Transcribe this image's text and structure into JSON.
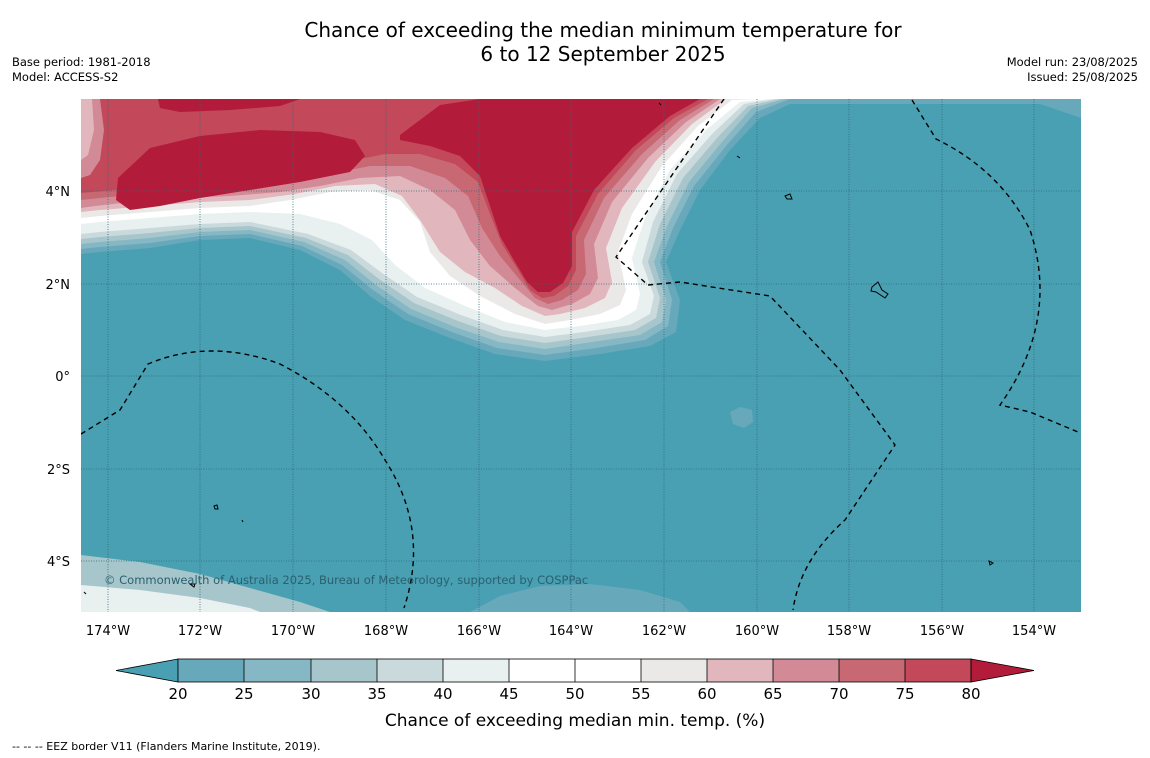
{
  "header": {
    "title_line1": "Chance of exceeding the median minimum temperature for",
    "title_line2": "6 to 12 September 2025",
    "base_period": "Base period: 1981-2018",
    "model": "Model: ACCESS-S2",
    "model_run": "Model run: 23/08/2025",
    "issued": "Issued: 25/08/2025"
  },
  "map": {
    "lat_range": [
      -5.2,
      5.8
    ],
    "lon_range": [
      -174.6,
      -153.0
    ],
    "lat_labels": [
      "4°N",
      "2°N",
      "0°",
      "2°S",
      "4°S"
    ],
    "lon_labels": [
      "174°W",
      "172°W",
      "170°W",
      "168°W",
      "166°W",
      "164°W",
      "162°W",
      "160°W",
      "158°W",
      "156°W",
      "154°W"
    ],
    "copyright": "© Commonwealth of Australia 2025, Bureau of Meteorology, supported by COSPPac",
    "colors": {
      "below_20": "#48a0b2",
      "c20_25": "#67a9bb",
      "c25_30": "#86b7c4",
      "c30_35": "#a7c6cb",
      "c35_40": "#cad9dc",
      "c40_45": "#e8f0f0",
      "c45_55": "#ffffff",
      "c55_60": "#ebe8e8",
      "c60_65": "#e2b6bd",
      "c65_70": "#d38a97",
      "c70_75": "#c86873",
      "c75_80": "#c2485a",
      "above_80": "#b31b3a"
    }
  },
  "colorbar": {
    "ticks": [
      "20",
      "25",
      "30",
      "35",
      "40",
      "45",
      "50",
      "55",
      "60",
      "65",
      "70",
      "75",
      "80"
    ],
    "label": "Chance of exceeding median min. temp. (%)"
  },
  "footnote": "--  --  -- EEZ border V11 (Flanders Marine Institute, 2019)."
}
